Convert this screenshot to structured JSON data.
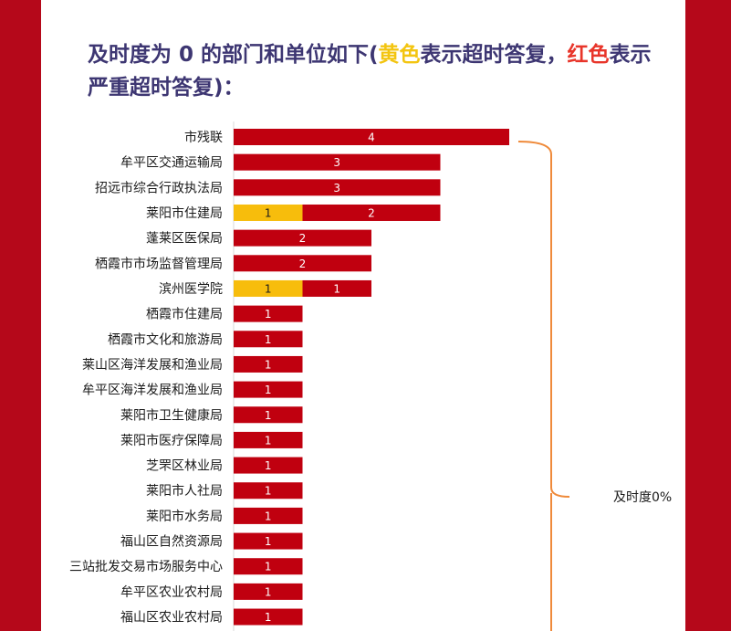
{
  "heading": {
    "part1": "及时度为 0 的部门和单位如下(",
    "yellow_word": "黄色",
    "part2": "表示超时答复，",
    "red_word": "红色",
    "part3": "表示严重超时答复)："
  },
  "colors": {
    "yellow": "#f7bd0c",
    "red": "#c0000f",
    "bracket": "#ef8a3a",
    "frame": "#b5081a"
  },
  "chart_data": {
    "type": "bar",
    "orientation": "horizontal",
    "stacked": true,
    "categories": [
      "市残联",
      "牟平区交通运输局",
      "招远市综合行政执法局",
      "莱阳市住建局",
      "蓬莱区医保局",
      "栖霞市市场监督管理局",
      "滨州医学院",
      "栖霞市住建局",
      "栖霞市文化和旅游局",
      "莱山区海洋发展和渔业局",
      "牟平区海洋发展和渔业局",
      "莱阳市卫生健康局",
      "莱阳市医疗保障局",
      "芝罘区林业局",
      "莱阳市人社局",
      "莱阳市水务局",
      "福山区自然资源局",
      "三站批发交易市场服务中心",
      "牟平区农业农村局",
      "福山区农业农村局"
    ],
    "series": [
      {
        "color": "#f7bd0c",
        "values": [
          0,
          0,
          0,
          1,
          0,
          0,
          1,
          0,
          0,
          0,
          0,
          0,
          0,
          0,
          0,
          0,
          0,
          0,
          0,
          0
        ]
      },
      {
        "color": "#c0000f",
        "values": [
          4,
          3,
          3,
          2,
          2,
          2,
          1,
          1,
          1,
          1,
          1,
          1,
          1,
          1,
          1,
          1,
          1,
          1,
          1,
          1
        ]
      }
    ],
    "annotation": "及时度0%",
    "grid": false,
    "legend": "none"
  }
}
